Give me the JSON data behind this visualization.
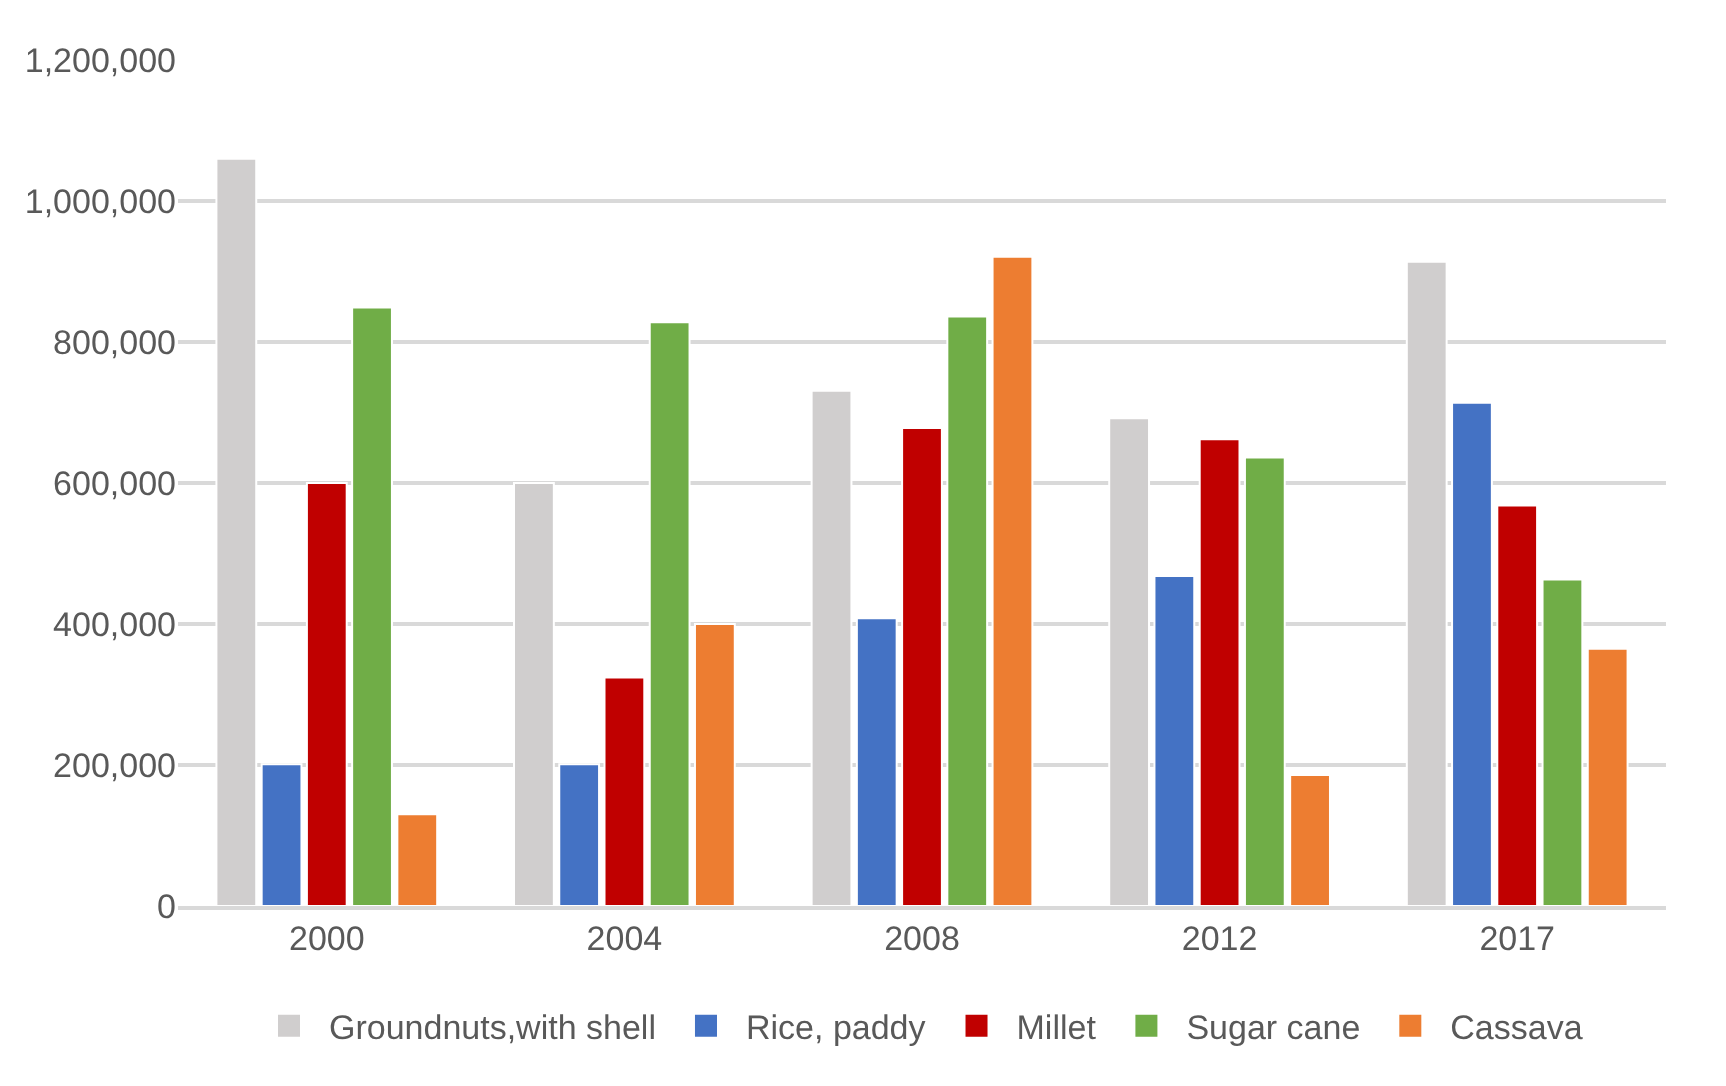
{
  "chart_data": {
    "type": "bar",
    "categories": [
      "2000",
      "2004",
      "2008",
      "2012",
      "2017"
    ],
    "series": [
      {
        "name": "Groundnuts,with shell",
        "color": "#d0cece",
        "values": [
          1060000,
          600000,
          731000,
          692000,
          914000
        ]
      },
      {
        "name": "Rice, paddy",
        "color": "#4472c4",
        "values": [
          201000,
          201000,
          408000,
          468000,
          714000
        ]
      },
      {
        "name": "Millet",
        "color": "#c00000",
        "values": [
          600000,
          324000,
          678000,
          662000,
          568000
        ]
      },
      {
        "name": "Sugar cane",
        "color": "#70ad47",
        "values": [
          849000,
          828000,
          836000,
          636000,
          463000
        ]
      },
      {
        "name": "Cassava",
        "color": "#ed7d31",
        "values": [
          130000,
          400000,
          921000,
          186000,
          365000
        ]
      }
    ],
    "ylim": [
      0,
      1200000
    ],
    "yticks": [
      {
        "value": 0,
        "label": "0"
      },
      {
        "value": 200000,
        "label": "200,000"
      },
      {
        "value": 400000,
        "label": "400,000"
      },
      {
        "value": 600000,
        "label": "600,000"
      },
      {
        "value": 800000,
        "label": "800,000"
      },
      {
        "value": 1000000,
        "label": "1,000,000"
      },
      {
        "value": 1200000,
        "label": "1,200,000"
      }
    ],
    "grid": "y",
    "legend": "bottom"
  }
}
